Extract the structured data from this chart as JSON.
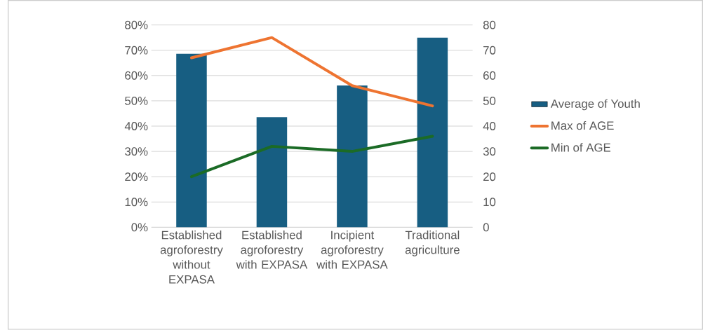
{
  "chart_data": {
    "type": "bar",
    "categories": [
      "Established agroforestry without EXPASA",
      "Established agroforestry with EXPASA",
      "Incipient agroforestry with EXPASA",
      "Traditional agriculture"
    ],
    "series": [
      {
        "name": "Average of Youth",
        "color": "#175e82",
        "values": [
          68.6,
          43.5,
          56.1,
          75.0
        ]
      },
      {
        "name": "Max of AGE",
        "type": "line",
        "axis": "y2",
        "color": "#ee7431",
        "values": [
          67,
          75,
          56,
          48
        ]
      },
      {
        "name": "Min of AGE",
        "type": "line",
        "axis": "y2",
        "color": "#1b6b26",
        "values": [
          20,
          32,
          30,
          36
        ]
      }
    ],
    "ylim": [
      0,
      80
    ],
    "yticks": [
      {
        "value": 0,
        "label": "0%"
      },
      {
        "value": 10,
        "label": "10%"
      },
      {
        "value": 20,
        "label": "20%"
      },
      {
        "value": 30,
        "label": "30%"
      },
      {
        "value": 40,
        "label": "40%"
      },
      {
        "value": 50,
        "label": "50%"
      },
      {
        "value": 60,
        "label": "60%"
      },
      {
        "value": 70,
        "label": "70%"
      },
      {
        "value": 80,
        "label": "80%"
      }
    ],
    "y2lim": [
      0,
      80
    ],
    "y2ticks": [
      0,
      10,
      20,
      30,
      40,
      50,
      60,
      70,
      80
    ],
    "grid": "y",
    "legend": "right",
    "marker": "none"
  }
}
